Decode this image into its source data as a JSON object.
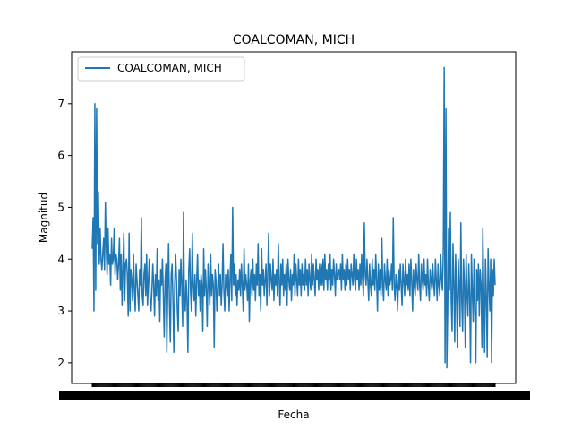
{
  "chart_data": {
    "type": "line",
    "title": "COALCOMAN, MICH",
    "xlabel": "Fecha",
    "ylabel": "Magnitud",
    "ylim": [
      1.6,
      8.0
    ],
    "yticks": [
      2,
      3,
      4,
      5,
      6,
      7
    ],
    "grid": false,
    "legend": "upper left",
    "x_tick_labels_note": "",
    "series": [
      {
        "name": "COALCOMAN, MICH",
        "color": "#1f77b4",
        "values": [
          4.2,
          4.8,
          3.0,
          7.0,
          3.4,
          6.9,
          4.3,
          5.3,
          3.9,
          4.6,
          4.0,
          3.8,
          4.1,
          4.4,
          3.8,
          5.1,
          4.2,
          3.7,
          4.6,
          3.9,
          4.1,
          3.5,
          4.4,
          3.9,
          4.0,
          4.6,
          3.7,
          4.1,
          4.0,
          3.6,
          3.9,
          4.4,
          3.4,
          4.1,
          3.1,
          3.8,
          4.5,
          3.2,
          3.9,
          4.0,
          3.7,
          2.9,
          4.5,
          3.0,
          3.8,
          3.6,
          3.2,
          4.1,
          3.4,
          3.0,
          3.9,
          3.6,
          3.3,
          3.0,
          3.8,
          3.5,
          4.8,
          3.3,
          3.1,
          3.7,
          3.9,
          3.3,
          4.1,
          3.1,
          3.6,
          4.0,
          3.2,
          3.0,
          3.4,
          3.9,
          3.5,
          2.9,
          3.7,
          3.3,
          4.2,
          3.2,
          3.6,
          2.8,
          3.8,
          3.5,
          4.0,
          3.3,
          2.5,
          3.6,
          3.9,
          2.2,
          3.4,
          4.3,
          3.1,
          2.4,
          3.7,
          3.9,
          3.2,
          2.2,
          3.5,
          4.1,
          3.6,
          3.0,
          2.6,
          3.8,
          3.3,
          4.0,
          3.5,
          2.7,
          4.9,
          3.2,
          3.0,
          3.6,
          3.2,
          2.2,
          3.8,
          4.2,
          3.4,
          3.0,
          4.5,
          3.5,
          3.2,
          3.7,
          2.9,
          3.6,
          4.1,
          3.3,
          3.6,
          3.0,
          3.7,
          3.5,
          2.6,
          4.2,
          3.3,
          3.8,
          3.4,
          2.7,
          3.9,
          3.5,
          3.1,
          4.1,
          3.3,
          3.7,
          3.5,
          2.3,
          3.8,
          3.6,
          3.0,
          3.4,
          3.9,
          3.3,
          3.7,
          3.1,
          3.5,
          4.3,
          3.4,
          3.0,
          3.7,
          3.5,
          3.3,
          3.8,
          3.0,
          3.6,
          4.1,
          3.2,
          5.0,
          3.5,
          3.9,
          3.3,
          3.7,
          3.1,
          3.6,
          3.4,
          3.8,
          3.3,
          3.9,
          3.5,
          3.0,
          4.2,
          3.4,
          3.7,
          3.5,
          3.2,
          3.9,
          2.8,
          3.6,
          3.8,
          3.3,
          4.0,
          3.4,
          3.7,
          3.2,
          3.9,
          3.5,
          4.3,
          3.3,
          3.7,
          3.0,
          4.2,
          3.5,
          3.8,
          3.3,
          3.6,
          3.9,
          3.1,
          3.7,
          4.5,
          3.3,
          3.9,
          3.6,
          3.4,
          4.0,
          3.2,
          3.7,
          3.5,
          3.8,
          3.3,
          4.3,
          3.6,
          3.1,
          3.9,
          3.5,
          4.0,
          3.3,
          3.7,
          3.4,
          3.9,
          3.1,
          4.0,
          3.6,
          3.4,
          3.8,
          3.2,
          3.7,
          3.5,
          4.1,
          3.3,
          3.9,
          3.6,
          3.3,
          4.0,
          3.5,
          3.8,
          3.3,
          3.9,
          3.5,
          3.7,
          3.4,
          4.0,
          3.5,
          3.8,
          3.3,
          3.9,
          3.6,
          3.4,
          4.1,
          3.5,
          3.9,
          3.6,
          3.3,
          4.0,
          3.6,
          3.8,
          3.4,
          3.9,
          3.5,
          3.9,
          3.5,
          4.0,
          3.4,
          4.1,
          3.6,
          3.8,
          3.4,
          3.9,
          3.6,
          4.1,
          3.4,
          3.8,
          3.5,
          4.0,
          3.7,
          3.3,
          3.9,
          3.6,
          3.7,
          3.8,
          3.6,
          3.9,
          3.4,
          4.1,
          3.6,
          3.8,
          3.4,
          3.9,
          3.5,
          4.0,
          3.6,
          3.8,
          3.4,
          3.9,
          3.7,
          3.5,
          4.1,
          3.6,
          3.4,
          4.0,
          3.6,
          3.8,
          3.4,
          3.9,
          3.5,
          4.1,
          3.6,
          3.3,
          4.7,
          3.7,
          3.5,
          4.0,
          3.6,
          3.2,
          3.9,
          3.5,
          3.3,
          4.0,
          3.5,
          3.8,
          3.4,
          4.1,
          3.6,
          3.0,
          3.9,
          3.4,
          3.8,
          3.3,
          4.4,
          3.5,
          3.2,
          3.9,
          3.6,
          3.4,
          4.0,
          3.3,
          3.8,
          3.5,
          3.6,
          3.9,
          3.4,
          4.8,
          3.5,
          3.2,
          3.7,
          3.5,
          3.0,
          3.8,
          3.4,
          3.9,
          3.5,
          3.1,
          3.9,
          3.6,
          3.3,
          4.0,
          3.5,
          3.7,
          3.4,
          3.9,
          3.3,
          4.0,
          3.6,
          3.0,
          3.8,
          3.5,
          3.3,
          3.9,
          3.6,
          3.4,
          4.1,
          3.5,
          3.2,
          3.9,
          3.6,
          3.4,
          4.0,
          3.5,
          3.7,
          3.3,
          4.0,
          3.5,
          3.2,
          3.8,
          3.6,
          3.4,
          3.9,
          3.5,
          3.3,
          4.0,
          3.6,
          3.2,
          3.9,
          3.5,
          3.3,
          4.1,
          3.6,
          3.4,
          4.2,
          7.7,
          2.0,
          6.9,
          1.9,
          3.0,
          4.6,
          3.4,
          4.9,
          3.2,
          2.6,
          4.3,
          3.6,
          2.4,
          4.1,
          3.3,
          2.3,
          4.0,
          3.5,
          2.7,
          4.7,
          3.2,
          2.6,
          4.0,
          3.5,
          2.3,
          4.1,
          3.3,
          2.9,
          3.9,
          3.3,
          2.0,
          4.1,
          3.4,
          2.8,
          4.0,
          3.0,
          2.0,
          3.8,
          3.2,
          3.9,
          2.9,
          3.8,
          3.5,
          2.3,
          4.6,
          3.4,
          2.2,
          4.0,
          3.3,
          2.1,
          4.2,
          3.5,
          3.0,
          4.0,
          2.0,
          3.8,
          3.3,
          4.0,
          3.5
        ]
      }
    ]
  }
}
